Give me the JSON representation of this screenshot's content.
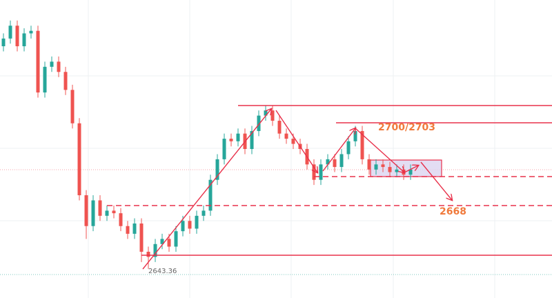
{
  "chart_data": {
    "type": "candlestick",
    "open": [
      2730,
      2733,
      2738,
      2730,
      2735,
      2736,
      2712,
      2722,
      2724,
      2720,
      2713,
      2700,
      2672,
      2660,
      2670,
      2664,
      2666,
      2665,
      2660,
      2657,
      2661,
      2650,
      2648,
      2653,
      2655,
      2652,
      2658,
      2662,
      2659,
      2664,
      2666,
      2678,
      2686,
      2694,
      2693,
      2696,
      2690,
      2697,
      2703,
      2705,
      2701,
      2696,
      2694,
      2692,
      2690,
      2684,
      2678,
      2684,
      2686,
      2683,
      2688,
      2693,
      2697,
      2686,
      2682,
      2684,
      2683,
      2681,
      2682,
      2680
    ],
    "high": [
      2735,
      2740,
      2740,
      2737,
      2738,
      2738,
      2724,
      2726,
      2726,
      2722,
      2715,
      2702,
      2674,
      2672,
      2672,
      2668,
      2668,
      2667,
      2662,
      2663,
      2663,
      2652,
      2655,
      2657,
      2657,
      2660,
      2664,
      2664,
      2666,
      2668,
      2680,
      2688,
      2696,
      2696,
      2698,
      2698,
      2699,
      2705,
      2707,
      2707,
      2703,
      2698,
      2696,
      2694,
      2692,
      2686,
      2686,
      2688,
      2688,
      2690,
      2695,
      2699,
      2699,
      2688,
      2686,
      2686,
      2685,
      2684,
      2684,
      2684
    ],
    "low": [
      2728,
      2731,
      2728,
      2728,
      2733,
      2710,
      2710,
      2720,
      2718,
      2711,
      2698,
      2670,
      2655,
      2658,
      2662,
      2662,
      2663,
      2658,
      2655,
      2655,
      2646,
      2643.36,
      2646,
      2651,
      2650,
      2650,
      2656,
      2657,
      2657,
      2662,
      2664,
      2676,
      2684,
      2691,
      2691,
      2688,
      2688,
      2695,
      2701,
      2699,
      2694,
      2692,
      2690,
      2688,
      2682,
      2676,
      2676,
      2682,
      2681,
      2681,
      2686,
      2691,
      2684,
      2680,
      2680,
      2681,
      2679,
      2679,
      2678,
      2678
    ],
    "close": [
      2733,
      2738,
      2730,
      2735,
      2736,
      2712,
      2722,
      2724,
      2720,
      2713,
      2700,
      2672,
      2660,
      2670,
      2664,
      2666,
      2665,
      2660,
      2657,
      2661,
      2650,
      2648,
      2653,
      2655,
      2652,
      2658,
      2662,
      2659,
      2664,
      2666,
      2678,
      2686,
      2694,
      2693,
      2696,
      2690,
      2697,
      2703,
      2705,
      2701,
      2696,
      2694,
      2692,
      2690,
      2684,
      2678,
      2684,
      2686,
      2683,
      2688,
      2693,
      2697,
      2686,
      2682,
      2684,
      2683,
      2681,
      2682,
      2680,
      2682
    ],
    "up_color": "#26a69a",
    "down_color": "#ef5350",
    "ylim": [
      2632,
      2748
    ],
    "annotations": [
      "2700/2703",
      "2668",
      "2643.36"
    ]
  }
}
